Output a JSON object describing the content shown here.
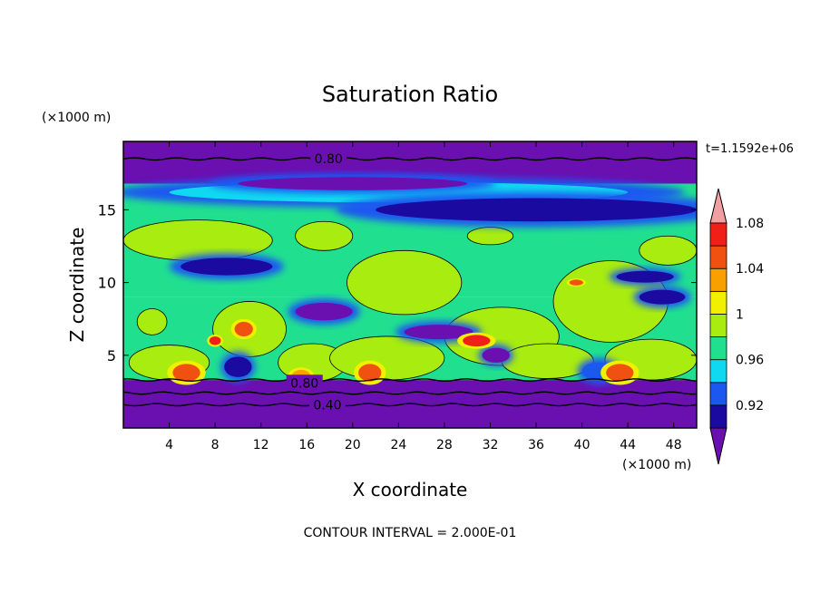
{
  "chart_data": {
    "type": "heatmap",
    "title": "Saturation Ratio",
    "xlabel": "X coordinate",
    "ylabel": "Z coordinate",
    "x_unit": "(×1000 m)",
    "y_unit": "(×1000 m)",
    "time_label": "t=1.1592e+06",
    "footer": "CONTOUR INTERVAL = 2.000E-01",
    "xlim": [
      0,
      50
    ],
    "ylim": [
      0,
      19.7
    ],
    "x_ticks": [
      4,
      8,
      12,
      16,
      20,
      24,
      28,
      32,
      36,
      40,
      44,
      48
    ],
    "y_ticks": [
      5,
      10,
      15
    ],
    "colorbar": {
      "levels": [
        0.92,
        0.94,
        0.96,
        0.98,
        1,
        1.02,
        1.04,
        1.06,
        1.08,
        1.1
      ],
      "tick_labels": [
        "0.92",
        "0.96",
        "1",
        "1.04",
        "1.08"
      ],
      "tick_values": [
        0.92,
        0.96,
        1,
        1.04,
        1.08
      ],
      "colors": [
        "#6a0fb0",
        "#1a0aa0",
        "#1a58f0",
        "#10d8f0",
        "#20e090",
        "#a8ec10",
        "#f0f000",
        "#f8a000",
        "#f05010",
        "#f02018",
        "#f0a0a0"
      ]
    },
    "contour_labels": [
      {
        "text": "0.80",
        "x": 17.9,
        "z": 18.5
      },
      {
        "text": "0.80",
        "x": 15.8,
        "z": 3.1
      },
      {
        "text": "0.40",
        "x": 17.8,
        "z": 1.6
      }
    ],
    "background_layers": [
      {
        "z0": 0,
        "z1": 3.3,
        "value": 0.4
      },
      {
        "z0": 3.3,
        "z1": 9,
        "value": 0.99
      },
      {
        "z0": 9,
        "z1": 16.8,
        "value": 0.985
      },
      {
        "z0": 16.8,
        "z1": 19.7,
        "value": 0.8
      }
    ],
    "features": [
      {
        "type": "moist",
        "x": 6.5,
        "z": 12.9,
        "rx": 6.5,
        "rz": 1.4,
        "value": 1.0
      },
      {
        "type": "moist",
        "x": 17.5,
        "z": 13.2,
        "rx": 2.5,
        "rz": 1.0,
        "value": 1.0
      },
      {
        "type": "moist",
        "x": 4,
        "z": 4.5,
        "rx": 3.5,
        "rz": 1.2,
        "value": 1.0
      },
      {
        "type": "moist",
        "x": 11,
        "z": 6.8,
        "rx": 3.2,
        "rz": 1.9,
        "value": 1.0
      },
      {
        "type": "moist",
        "x": 16.5,
        "z": 4.5,
        "rx": 3,
        "rz": 1.3,
        "value": 1.0
      },
      {
        "type": "moist",
        "x": 24.5,
        "z": 10.0,
        "rx": 5,
        "rz": 2.2,
        "value": 1.0
      },
      {
        "type": "moist",
        "x": 23,
        "z": 4.8,
        "rx": 5,
        "rz": 1.5,
        "value": 1.0
      },
      {
        "type": "moist",
        "x": 33,
        "z": 6.3,
        "rx": 5,
        "rz": 2.0,
        "value": 1.0
      },
      {
        "type": "moist",
        "x": 32,
        "z": 13.2,
        "rx": 2,
        "rz": 0.6,
        "value": 1.0
      },
      {
        "type": "moist",
        "x": 42.5,
        "z": 8.7,
        "rx": 5,
        "rz": 2.8,
        "value": 1.0
      },
      {
        "type": "moist",
        "x": 47.5,
        "z": 12.2,
        "rx": 2.5,
        "rz": 1.0,
        "value": 1.0
      },
      {
        "type": "moist",
        "x": 46,
        "z": 4.7,
        "rx": 4,
        "rz": 1.4,
        "value": 1.0
      },
      {
        "type": "moist",
        "x": 37,
        "z": 4.6,
        "rx": 4,
        "rz": 1.2,
        "value": 1.0
      },
      {
        "type": "moist",
        "x": 2.5,
        "z": 7.3,
        "rx": 1.3,
        "rz": 0.9,
        "value": 1.0
      },
      {
        "type": "dry",
        "x": 24,
        "z": 16.2,
        "rx": 20,
        "rz": 0.7,
        "value": 0.96
      },
      {
        "type": "dry",
        "x": 36,
        "z": 15.0,
        "rx": 14,
        "rz": 0.8,
        "value": 0.93
      },
      {
        "type": "dry",
        "x": 9,
        "z": 11.1,
        "rx": 4,
        "rz": 0.6,
        "value": 0.93
      },
      {
        "type": "dry",
        "x": 20,
        "z": 16.8,
        "rx": 10,
        "rz": 0.45,
        "value": 0.9
      },
      {
        "type": "dry",
        "x": 17.5,
        "z": 8.0,
        "rx": 2.5,
        "rz": 0.6,
        "value": 0.91
      },
      {
        "type": "dry",
        "x": 27.5,
        "z": 6.6,
        "rx": 3,
        "rz": 0.5,
        "value": 0.91
      },
      {
        "type": "dry",
        "x": 32.5,
        "z": 5.0,
        "rx": 1.2,
        "rz": 0.5,
        "value": 0.91
      },
      {
        "type": "dry",
        "x": 47,
        "z": 9.0,
        "rx": 2,
        "rz": 0.5,
        "value": 0.92
      },
      {
        "type": "dry",
        "x": 45.5,
        "z": 10.4,
        "rx": 2.5,
        "rz": 0.4,
        "value": 0.93
      },
      {
        "type": "dry",
        "x": 10,
        "z": 4.2,
        "rx": 1.2,
        "rz": 0.7,
        "value": 0.92
      },
      {
        "type": "dry",
        "x": 41.5,
        "z": 3.9,
        "rx": 1.5,
        "rz": 0.6,
        "value": 0.95
      },
      {
        "type": "supersat",
        "x": 5.5,
        "z": 3.8,
        "rx": 1.2,
        "rz": 0.6,
        "value": 1.06
      },
      {
        "type": "supersat",
        "x": 21.5,
        "z": 3.8,
        "rx": 1.0,
        "rz": 0.6,
        "value": 1.06
      },
      {
        "type": "supersat",
        "x": 43.3,
        "z": 3.8,
        "rx": 1.2,
        "rz": 0.6,
        "value": 1.06
      },
      {
        "type": "supersat",
        "x": 15.5,
        "z": 3.6,
        "rx": 0.8,
        "rz": 0.4,
        "value": 1.04
      },
      {
        "type": "supersat",
        "x": 30.8,
        "z": 6.0,
        "rx": 1.2,
        "rz": 0.4,
        "value": 1.08
      },
      {
        "type": "supersat",
        "x": 10.5,
        "z": 6.8,
        "rx": 0.8,
        "rz": 0.5,
        "value": 1.06
      },
      {
        "type": "supersat",
        "x": 8,
        "z": 6.0,
        "rx": 0.5,
        "rz": 0.3,
        "value": 1.08
      },
      {
        "type": "supersat",
        "x": 39.5,
        "z": 10.0,
        "rx": 0.6,
        "rz": 0.2,
        "value": 1.06
      }
    ]
  }
}
